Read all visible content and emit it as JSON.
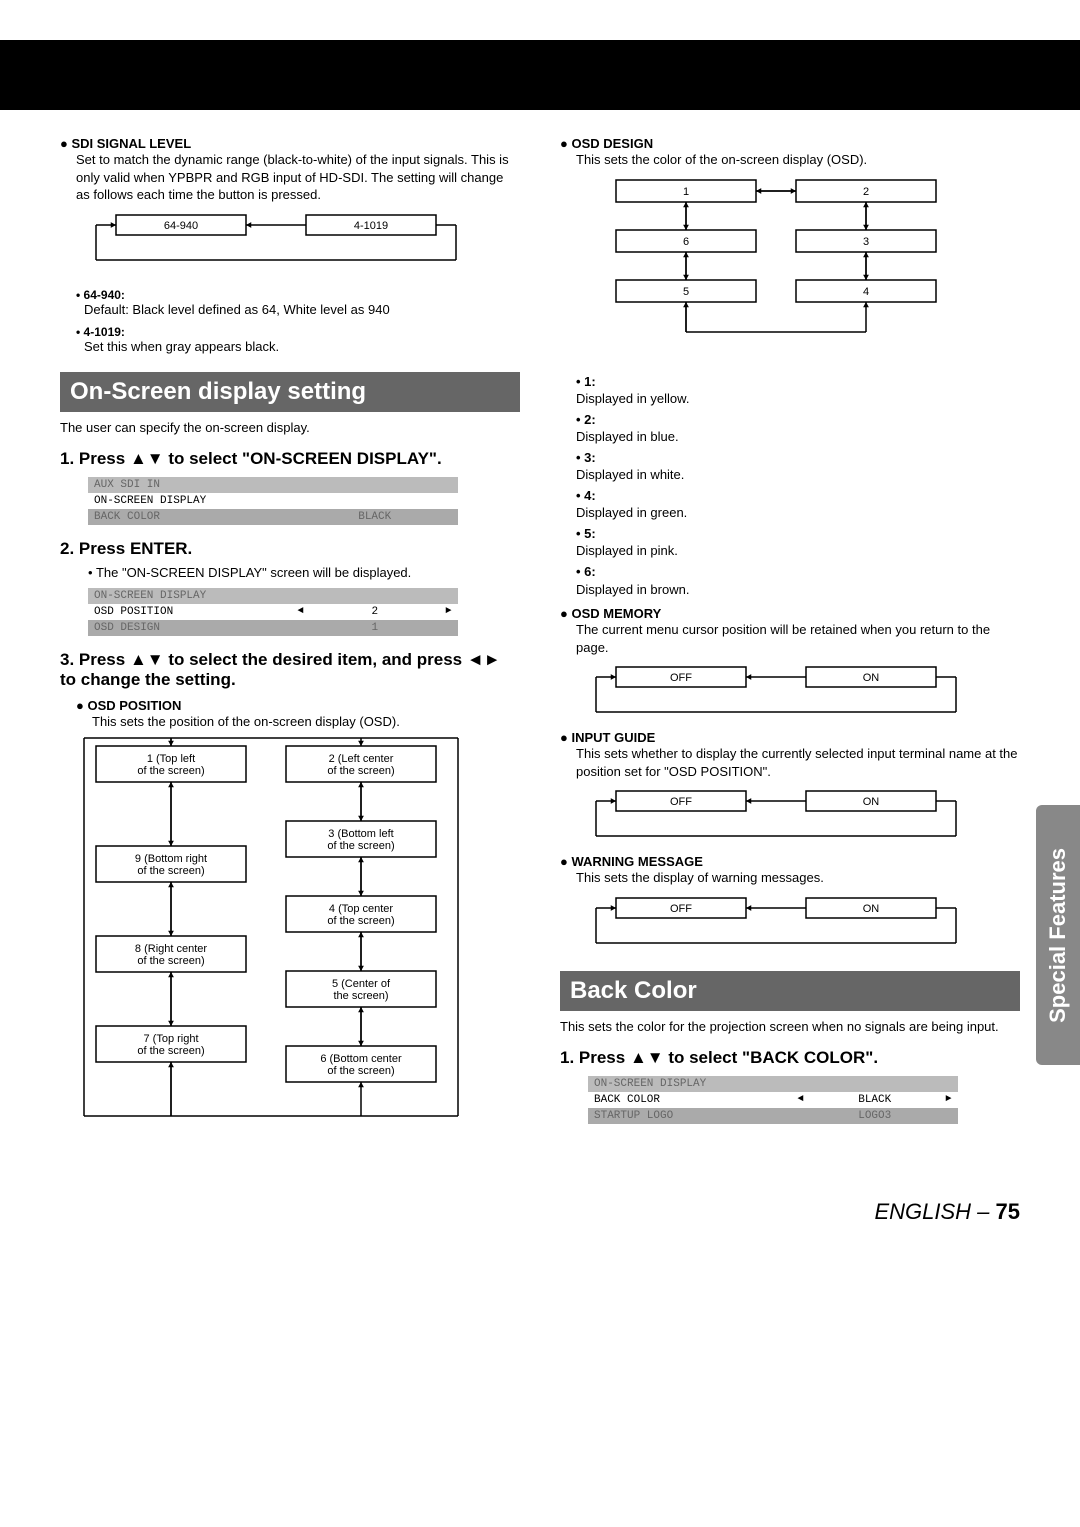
{
  "col_left": {
    "sdi_hdr": "SDI SIGNAL LEVEL",
    "sdi_body": "Set to match the dynamic range (black-to-white) of the input signals. This is only valid when YPBPR and RGB input of HD-SDI. The setting will change as follows each time the button is pressed.",
    "sdi_flow": {
      "a": "64-940",
      "b": "4-1019"
    },
    "opt1_t": "64-940:",
    "opt1_d": "Default: Black level defined as 64, White level as 940",
    "opt2_t": "4-1019:",
    "opt2_d": "Set this when gray appears black.",
    "sec_title": "On-Screen display setting",
    "sec_intro": "The user can specify the on-screen display.",
    "step1": "1. Press ▲▼ to select \"ON-SCREEN DISPLAY\".",
    "menu1": [
      {
        "cls": "gray-light",
        "c1": "AUX SDI IN"
      },
      {
        "cls": "white",
        "c1": "ON-SCREEN DISPLAY"
      },
      {
        "cls": "gray",
        "c1": "BACK COLOR",
        "c2": "BLACK"
      }
    ],
    "step2": "2. Press ENTER.",
    "step2_sub": "The \"ON-SCREEN DISPLAY\" screen will be displayed.",
    "menu2": [
      {
        "cls": "gray-light",
        "c1": "ON-SCREEN DISPLAY"
      },
      {
        "cls": "white",
        "c1": "OSD POSITION",
        "c2": "2",
        "arrows": true
      },
      {
        "cls": "gray",
        "c1": "OSD DESIGN",
        "c2": "1"
      }
    ],
    "step3": "3. Press ▲▼ to select the desired item, and press ◄► to change the setting.",
    "osd_pos_hdr": "OSD POSITION",
    "osd_pos_body": "This sets the position of the on-screen display (OSD).",
    "positions": {
      "1": "1 (Top left of the screen)",
      "2": "2 (Left center of the screen)",
      "3": "3 (Bottom left of the screen)",
      "4": "4 (Top center of the screen)",
      "5": "5 (Center of the screen)",
      "6": "6 (Bottom center of the screen)",
      "7": "7 (Top right of the screen)",
      "8": "8 (Right center of the screen)",
      "9": "9 (Bottom right of the screen)"
    }
  },
  "col_right": {
    "design_hdr": "OSD DESIGN",
    "design_body": "This sets the color of the on-screen display (OSD).",
    "design_nums": [
      "1",
      "2",
      "3",
      "4",
      "5",
      "6"
    ],
    "colors": [
      {
        "k": "1",
        "v": "Displayed in yellow."
      },
      {
        "k": "2",
        "v": "Displayed in blue."
      },
      {
        "k": "3",
        "v": "Displayed in white."
      },
      {
        "k": "4",
        "v": "Displayed in green."
      },
      {
        "k": "5",
        "v": "Displayed in pink."
      },
      {
        "k": "6",
        "v": "Displayed in brown."
      }
    ],
    "mem_hdr": "OSD MEMORY",
    "mem_body": "The current menu cursor position will be retained when you return to the page.",
    "off_on": {
      "a": "OFF",
      "b": "ON"
    },
    "guide_hdr": "INPUT GUIDE",
    "guide_body": "This sets whether to display the currently selected input terminal name at the position set for \"OSD POSITION\".",
    "warn_hdr": "WARNING MESSAGE",
    "warn_body": "This sets the display of warning messages.",
    "back_title": "Back Color",
    "back_intro": "This sets the color for the projection screen when no signals are being input.",
    "back_step": "1. Press ▲▼ to select \"BACK COLOR\".",
    "menu3": [
      {
        "cls": "gray-light",
        "c1": "ON-SCREEN DISPLAY"
      },
      {
        "cls": "white",
        "c1": "BACK COLOR",
        "c2": "BLACK",
        "arrows": true
      },
      {
        "cls": "gray",
        "c1": "STARTUP LOGO",
        "c2": "LOGO3"
      }
    ]
  },
  "side_tab": "Special Features",
  "footer_lang": "ENGLISH",
  "footer_page": "75"
}
